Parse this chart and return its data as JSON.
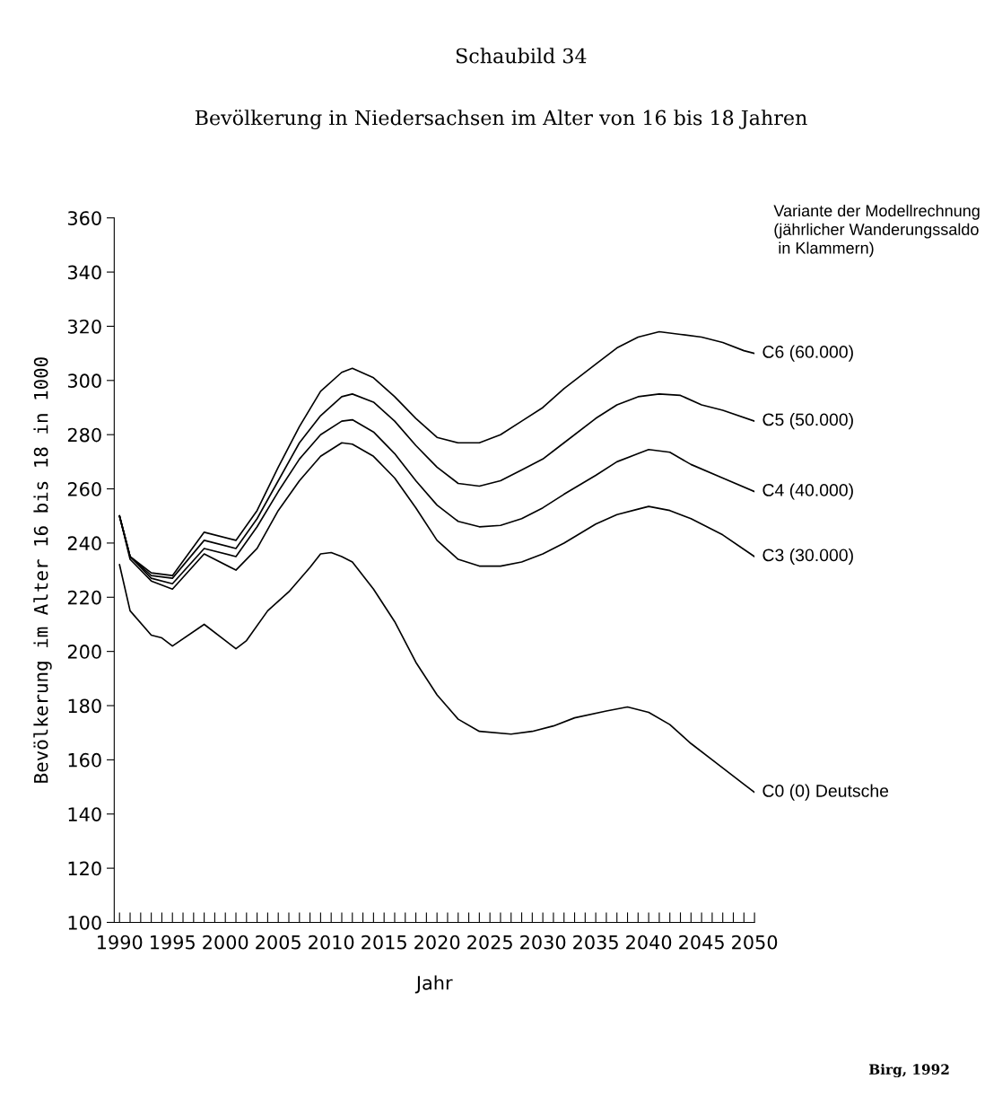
{
  "chart_data": {
    "type": "line",
    "title": "Schaubild 34",
    "subtitle": "Bevölkerung in Niedersachsen im Alter von 16 bis 18 Jahren",
    "xlabel": "Jahr",
    "ylabel": "Bevölkerung im Alter 16 bis 18 in 1000",
    "legend_title": "Variante der Modellrechnung\n(jährlicher Wanderungssaldo\n in Klammern)",
    "annotations": [
      "Birg, 1992"
    ],
    "xlim": [
      1989.5,
      2050
    ],
    "ylim": [
      100,
      360
    ],
    "xticks": [
      1990,
      {
        "value": 1991,
        "label": null
      },
      {
        "value": 1992,
        "label": null
      },
      {
        "value": 1993,
        "label": null
      },
      {
        "value": 1994,
        "label": null
      },
      1995,
      {
        "value": 1996,
        "label": null
      },
      {
        "value": 1997,
        "label": null
      },
      {
        "value": 1998,
        "label": null
      },
      {
        "value": 1999,
        "label": null
      },
      2000,
      {
        "value": 2001,
        "label": null
      },
      {
        "value": 2002,
        "label": null
      },
      {
        "value": 2003,
        "label": null
      },
      {
        "value": 2004,
        "label": null
      },
      2005,
      {
        "value": 2006,
        "label": null
      },
      {
        "value": 2007,
        "label": null
      },
      {
        "value": 2008,
        "label": null
      },
      {
        "value": 2009,
        "label": null
      },
      2010,
      {
        "value": 2011,
        "label": null
      },
      {
        "value": 2012,
        "label": null
      },
      {
        "value": 2013,
        "label": null
      },
      {
        "value": 2014,
        "label": null
      },
      2015,
      {
        "value": 2016,
        "label": null
      },
      {
        "value": 2017,
        "label": null
      },
      {
        "value": 2018,
        "label": null
      },
      {
        "value": 2019,
        "label": null
      },
      2020,
      {
        "value": 2021,
        "label": null
      },
      {
        "value": 2022,
        "label": null
      },
      {
        "value": 2023,
        "label": null
      },
      {
        "value": 2024,
        "label": null
      },
      2025,
      {
        "value": 2026,
        "label": null
      },
      {
        "value": 2027,
        "label": null
      },
      {
        "value": 2028,
        "label": null
      },
      {
        "value": 2029,
        "label": null
      },
      2030,
      {
        "value": 2031,
        "label": null
      },
      {
        "value": 2032,
        "label": null
      },
      {
        "value": 2033,
        "label": null
      },
      {
        "value": 2034,
        "label": null
      },
      2035,
      {
        "value": 2036,
        "label": null
      },
      {
        "value": 2037,
        "label": null
      },
      {
        "value": 2038,
        "label": null
      },
      {
        "value": 2039,
        "label": null
      },
      2040,
      {
        "value": 2041,
        "label": null
      },
      {
        "value": 2042,
        "label": null
      },
      {
        "value": 2043,
        "label": null
      },
      {
        "value": 2044,
        "label": null
      },
      2045,
      {
        "value": 2046,
        "label": null
      },
      {
        "value": 2047,
        "label": null
      },
      {
        "value": 2048,
        "label": null
      },
      {
        "value": 2049,
        "label": null
      },
      2050
    ],
    "yticks": [
      100,
      120,
      140,
      160,
      180,
      200,
      220,
      240,
      260,
      280,
      300,
      320,
      340,
      360
    ],
    "grid": false,
    "legend": false,
    "marker": "none",
    "line_style": "solid",
    "series": [
      {
        "name": "C6 (60.000)",
        "color": "#000000",
        "x": [
          1990,
          1991,
          1993,
          1995,
          1998,
          2001,
          2003,
          2005,
          2007,
          2009,
          2011,
          2012,
          2014,
          2016,
          2018,
          2020,
          2022,
          2024,
          2026,
          2028,
          2030,
          2032,
          2035,
          2037,
          2039,
          2041,
          2043,
          2045,
          2047,
          2049,
          2050
        ],
        "values": [
          250,
          235,
          229,
          228,
          244,
          241,
          252,
          268,
          283,
          296,
          303,
          304.5,
          301,
          294,
          286,
          279,
          277,
          277,
          280,
          285,
          290,
          297,
          306,
          312,
          316,
          318,
          317,
          316,
          314,
          311,
          310
        ]
      },
      {
        "name": "C5 (50.000)",
        "color": "#000000",
        "x": [
          1990,
          1991,
          1993,
          1995,
          1998,
          2001,
          2003,
          2005,
          2007,
          2009,
          2011,
          2012,
          2014,
          2016,
          2018,
          2020,
          2022,
          2024,
          2026,
          2028,
          2030,
          2032,
          2035,
          2037,
          2039,
          2041,
          2043,
          2045,
          2047,
          2050
        ],
        "values": [
          250,
          235,
          228,
          227,
          241,
          238,
          249,
          263,
          277,
          287,
          294,
          295,
          292,
          285,
          276,
          268,
          262,
          261,
          263,
          267,
          271,
          277,
          286,
          291,
          294,
          295,
          294.5,
          291,
          289,
          285
        ]
      },
      {
        "name": "C4 (40.000)",
        "color": "#000000",
        "x": [
          1990,
          1991,
          1993,
          1995,
          1998,
          2001,
          2003,
          2005,
          2007,
          2009,
          2011,
          2012,
          2014,
          2016,
          2018,
          2020,
          2022,
          2024,
          2026,
          2028,
          2030,
          2032,
          2035,
          2037,
          2039,
          2040,
          2042,
          2044,
          2047,
          2050
        ],
        "values": [
          250,
          235,
          227,
          225,
          238,
          235,
          246,
          259,
          271,
          280,
          285,
          285.5,
          281,
          273,
          263,
          254,
          248,
          246,
          246.5,
          249,
          253,
          258,
          265,
          270,
          273,
          274.5,
          273.5,
          269,
          264,
          259
        ]
      },
      {
        "name": "C3 (30.000)",
        "color": "#000000",
        "x": [
          1990,
          1991,
          1993,
          1995,
          1998,
          2001,
          2003,
          2005,
          2007,
          2009,
          2011,
          2012,
          2014,
          2016,
          2018,
          2020,
          2022,
          2024,
          2026,
          2028,
          2030,
          2032,
          2035,
          2037,
          2039,
          2040,
          2042,
          2044,
          2047,
          2050
        ],
        "values": [
          250,
          234,
          226,
          223,
          236,
          230,
          238,
          252,
          263,
          272,
          277,
          276.5,
          272,
          264,
          253,
          241,
          234,
          231.5,
          231.5,
          233,
          236,
          240,
          247,
          250.5,
          252.5,
          253.5,
          252,
          249,
          243,
          235
        ]
      },
      {
        "name": "C0 (0) Deutsche",
        "color": "#000000",
        "x": [
          1990,
          1991,
          1993,
          1994,
          1995,
          1998,
          2001,
          2002,
          2004,
          2006,
          2008,
          2009,
          2010,
          2011,
          2012,
          2014,
          2016,
          2018,
          2020,
          2022,
          2024,
          2027,
          2029,
          2031,
          2033,
          2036,
          2038,
          2040,
          2042,
          2044,
          2046,
          2049,
          2050
        ],
        "values": [
          232,
          215,
          206,
          205,
          202,
          210,
          201,
          204,
          215,
          222,
          231,
          236,
          236.5,
          235,
          233,
          223,
          211,
          196,
          184,
          175,
          170.5,
          169.5,
          170.5,
          172.5,
          175.5,
          178,
          179.5,
          177.5,
          173,
          166,
          160,
          151,
          148
        ]
      }
    ]
  }
}
